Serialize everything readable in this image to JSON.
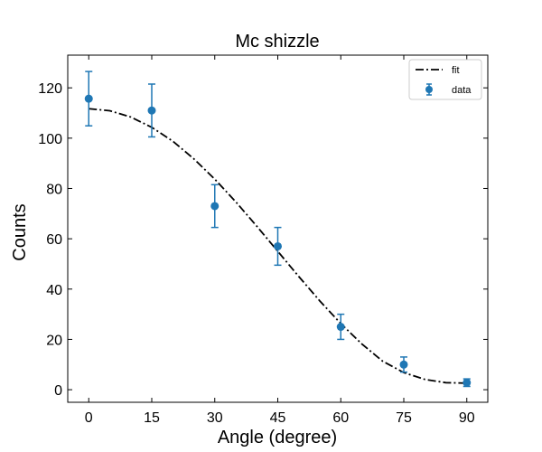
{
  "chart_data": {
    "type": "scatter",
    "title": "Mc shizzle",
    "xlabel": "Angle (degree)",
    "ylabel": "Counts",
    "xlim": [
      -5,
      95
    ],
    "ylim": [
      -5,
      133
    ],
    "xticks": [
      0,
      15,
      30,
      45,
      60,
      75,
      90
    ],
    "yticks": [
      0,
      20,
      40,
      60,
      80,
      100,
      120
    ],
    "grid": false,
    "legend": {
      "position": "top-right",
      "entries": [
        "fit",
        "data"
      ]
    },
    "series": [
      {
        "name": "data",
        "kind": "errorbar",
        "color": "#1f77b4",
        "x": [
          0,
          15,
          30,
          45,
          60,
          75,
          90
        ],
        "y": [
          115.7,
          111,
          73,
          57,
          25,
          10,
          2.8
        ],
        "yerr": [
          10.8,
          10.5,
          8.5,
          7.5,
          5,
          3,
          1.5
        ]
      },
      {
        "name": "fit",
        "kind": "line",
        "style": "dash-dot",
        "color": "#000000",
        "x": [
          0,
          5,
          10,
          15,
          20,
          25,
          30,
          35,
          40,
          45,
          50,
          55,
          60,
          65,
          70,
          75,
          80,
          85,
          90
        ],
        "y": [
          111.7,
          110.9,
          108.4,
          104.3,
          98.8,
          91.8,
          83.7,
          74.7,
          65.0,
          55.0,
          45.0,
          35.3,
          26.3,
          18.2,
          11.3,
          6.8,
          4.1,
          2.8,
          2.6
        ]
      }
    ]
  }
}
